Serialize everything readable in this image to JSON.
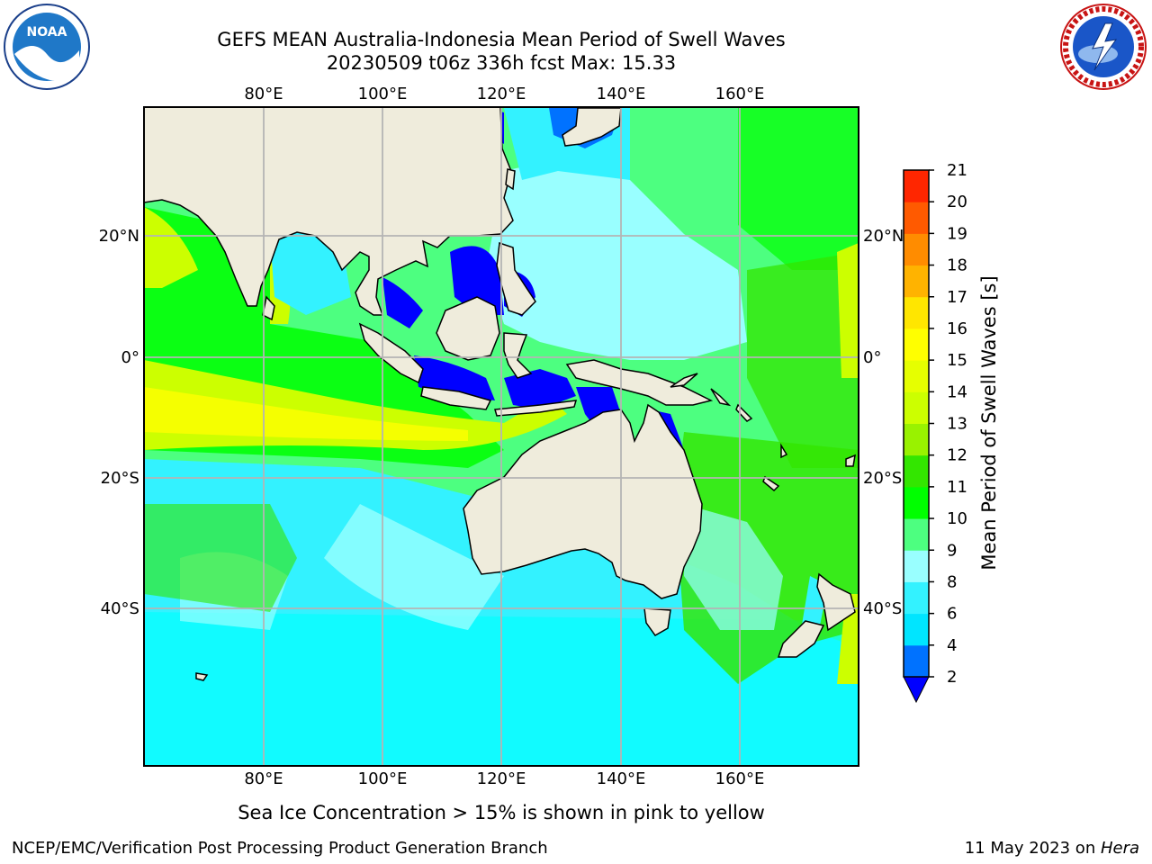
{
  "header": {
    "title_line1": "GEFS MEAN Australia-Indonesia Mean Period of Swell Waves",
    "title_line2": "20230509 t06z 336h fcst   Max: 15.33"
  },
  "logos": {
    "left": {
      "icon": "noaa-logo-icon",
      "text": "NOAA"
    },
    "right": {
      "icon": "nws-logo-icon"
    }
  },
  "map": {
    "lon_labels": [
      "80°E",
      "100°E",
      "120°E",
      "140°E",
      "160°E"
    ],
    "lat_labels": [
      "20°N",
      "0°",
      "20°S",
      "40°S"
    ],
    "landmask_color": "#efecdc"
  },
  "colorbar": {
    "label": "Mean Period of Swell Waves [s]",
    "ticks": [
      "2",
      "4",
      "6",
      "8",
      "9",
      "10",
      "11",
      "12",
      "13",
      "14",
      "15",
      "16",
      "17",
      "18",
      "19",
      "20",
      "21"
    ],
    "colors": [
      "#0072ff",
      "#00e5ff",
      "#33f2ff",
      "#99ffff",
      "#4dff80",
      "#00ff00",
      "#33e600",
      "#99f200",
      "#ccff00",
      "#e6ff00",
      "#ffff00",
      "#ffe600",
      "#ffb300",
      "#ff8c00",
      "#ff5a00",
      "#ff2600"
    ],
    "under_color": "#0000ff",
    "over_color": "#ff0000"
  },
  "caption": "Sea Ice Concentration > 15% is shown in pink to yellow",
  "footer": {
    "left": "NCEP/EMC/Verification Post Processing Product Generation Branch",
    "right_date": "11 May 2023 on ",
    "right_host": "Hera"
  }
}
